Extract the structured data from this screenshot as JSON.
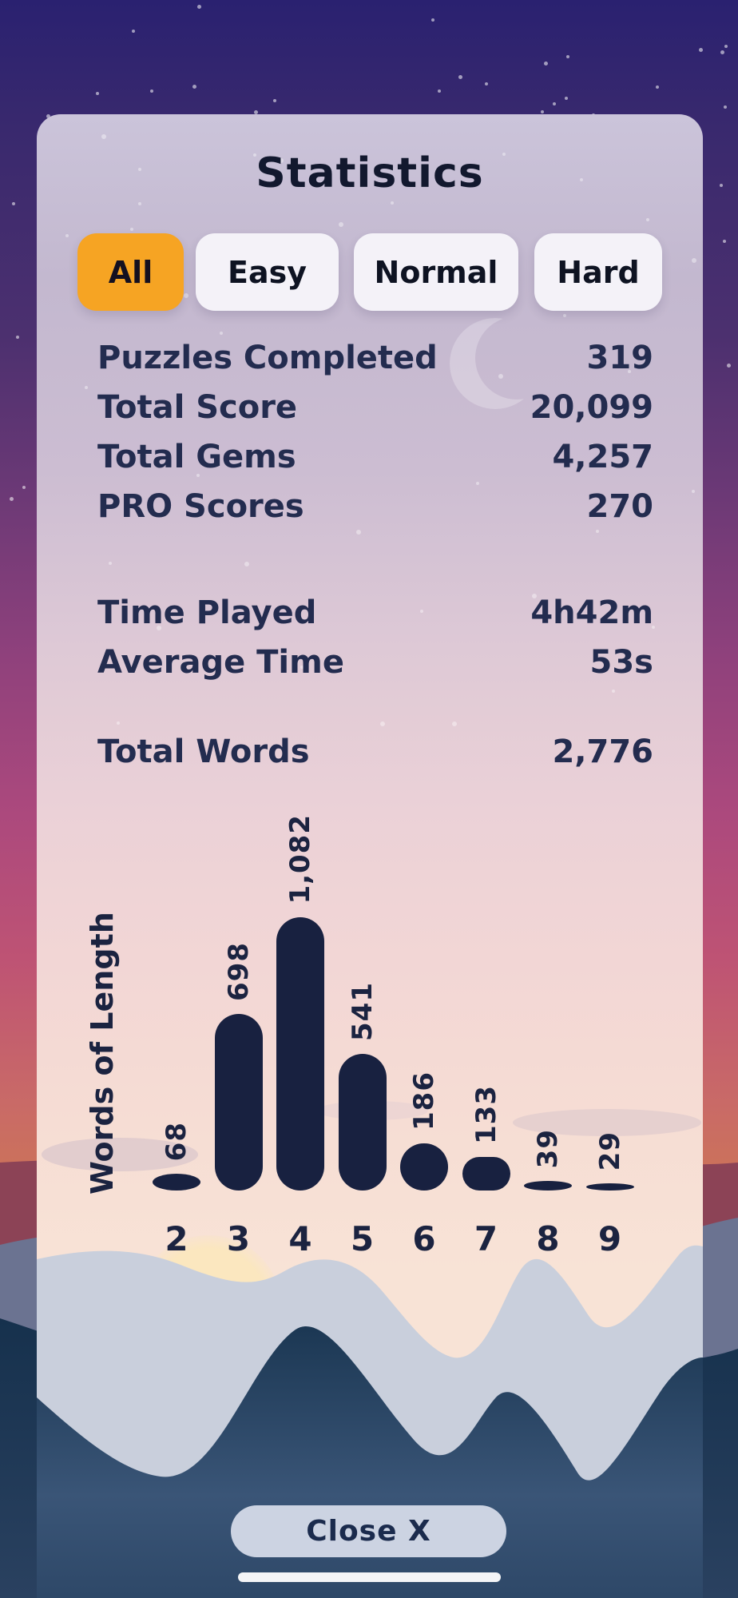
{
  "title": "Statistics",
  "tabs": [
    {
      "label": "All",
      "selected": true
    },
    {
      "label": "Easy",
      "selected": false
    },
    {
      "label": "Normal",
      "selected": false
    },
    {
      "label": "Hard",
      "selected": false
    }
  ],
  "stats_groups": [
    [
      {
        "label": "Puzzles Completed",
        "value": "319"
      },
      {
        "label": "Total Score",
        "value": "20,099"
      },
      {
        "label": "Total Gems",
        "value": "4,257"
      },
      {
        "label": "PRO Scores",
        "value": "270"
      }
    ],
    [
      {
        "label": "Time Played",
        "value": "4h42m"
      },
      {
        "label": "Average Time",
        "value": "53s"
      }
    ],
    [
      {
        "label": "Total Words",
        "value": "2,776"
      }
    ]
  ],
  "chart_data": {
    "type": "bar",
    "categories": [
      "2",
      "3",
      "4",
      "5",
      "6",
      "7",
      "8",
      "9"
    ],
    "values": [
      68,
      698,
      1082,
      541,
      186,
      133,
      39,
      29
    ],
    "value_labels": [
      "68",
      "698",
      "1,082",
      "541",
      "186",
      "133",
      "39",
      "29"
    ],
    "title": "",
    "xlabel": "",
    "ylabel": "Words of Length",
    "ylim": [
      0,
      1082
    ],
    "grid": false,
    "legend": "none",
    "bar_color": "#182140"
  },
  "close_button_label": "Close X",
  "colors": {
    "accent_orange": "#F6A423",
    "tab_inactive": "#F4F2F8",
    "text_navy": "#232C4F",
    "bar_navy": "#182140",
    "close_bg": "#CCD3E2",
    "sky_top": "#2A2170",
    "sky_bottom": "#CE7950",
    "mountain_dark": "#1C3854",
    "mountain_light": "#C9CFDC"
  }
}
